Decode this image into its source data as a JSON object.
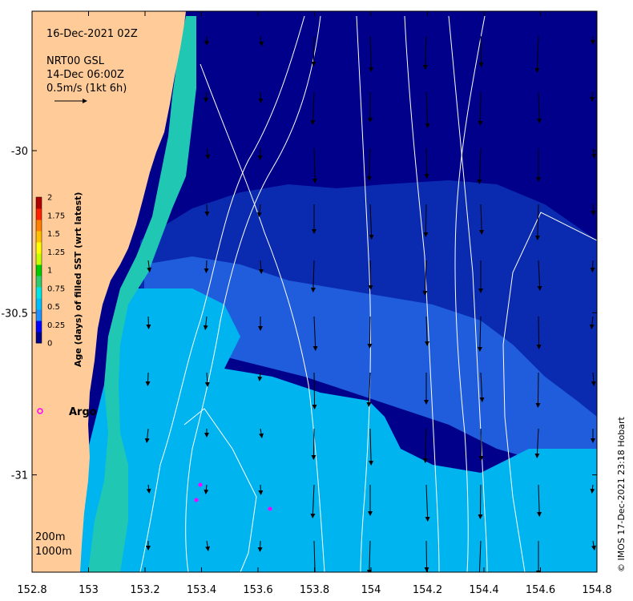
{
  "header": {
    "date": "16-Dec-2021 02Z",
    "product": "NRT00 GSL",
    "product_time": "14-Dec 06:00Z",
    "scale_label": "0.5m/s (1kt 6h)"
  },
  "depth_legend": {
    "line1": "200m",
    "line2": "1000m"
  },
  "argo": {
    "label": "Argo",
    "color": "#ff00ff"
  },
  "credit": "© IMOS 17-Dec-2021 23:18 Hobart",
  "colorbar": {
    "title": "Age (days) of filled SST (wrt latest)",
    "ticks": [
      "2",
      "1.75",
      "1.5",
      "1.25",
      "1",
      "0.75",
      "0.5",
      "0.25",
      "0"
    ],
    "colors": [
      "#00008b",
      "#0000ff",
      "#1e90ff",
      "#00bfff",
      "#00e5e5",
      "#2ecc71",
      "#00cc00",
      "#c8ff00",
      "#ffff00",
      "#ffc000",
      "#ff7f00",
      "#ff2000",
      "#b00000"
    ]
  },
  "chart_data": {
    "type": "heatmap",
    "title": "",
    "xlabel": "",
    "ylabel": "",
    "x_ticks": [
      "152.8",
      "153",
      "153.2",
      "153.4",
      "153.6",
      "153.8",
      "154",
      "154.2",
      "154.4",
      "154.6",
      "154.8"
    ],
    "y_ticks": [
      "-30",
      "-30.5",
      "-31"
    ],
    "xlim": [
      152.8,
      154.8
    ],
    "ylim": [
      -31.3,
      -29.57
    ],
    "land_color": "#ffcc99",
    "colors": {
      "age_0": "#00008b",
      "age_0_1": "#0a2bb0",
      "age_0_25": "#1f5ddc",
      "age_0_5": "#00b4f0",
      "age_0_75": "#20c8b4"
    }
  }
}
